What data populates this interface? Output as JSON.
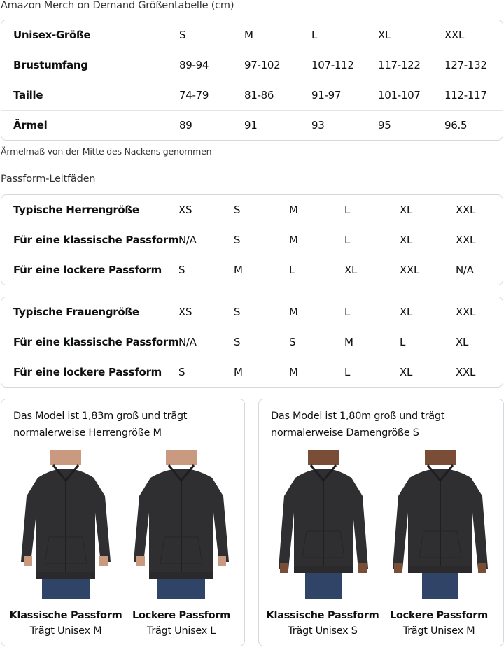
{
  "title": "Amazon Merch on Demand Größentabelle (cm)",
  "size_table": {
    "rows": [
      [
        "Unisex-Größe",
        "S",
        "M",
        "L",
        "XL",
        "XXL"
      ],
      [
        "Brustumfang",
        "89-94",
        "97-102",
        "107-112",
        "117-122",
        "127-132"
      ],
      [
        "Taille",
        "74-79",
        "81-86",
        "91-97",
        "101-107",
        "112-117"
      ],
      [
        "Ärmel",
        "89",
        "91",
        "93",
        "95",
        "96.5"
      ]
    ]
  },
  "note": "Ärmelmaß von der Mitte des Nackens genommen",
  "fit_title": "Passform-Leitfäden",
  "men_table": {
    "rows": [
      [
        "Typische Herrengröße",
        "XS",
        "S",
        "M",
        "L",
        "XL",
        "XXL"
      ],
      [
        "Für eine klassische Passform",
        "N/A",
        "S",
        "M",
        "L",
        "XL",
        "XXL"
      ],
      [
        "Für eine lockere Passform",
        "S",
        "M",
        "L",
        "XL",
        "XXL",
        "N/A"
      ]
    ]
  },
  "women_table": {
    "rows": [
      [
        "Typische Frauengröße",
        "XS",
        "S",
        "M",
        "L",
        "XL",
        "XXL"
      ],
      [
        "Für eine klassische Passform",
        "N/A",
        "S",
        "S",
        "M",
        "L",
        "XL"
      ],
      [
        "Für eine lockere Passform",
        "S",
        "M",
        "M",
        "L",
        "XL",
        "XXL"
      ]
    ]
  },
  "cards": [
    {
      "line1": "Das Model ist 1,83m groß und trägt",
      "line2": "normalerweise Herrengröße M",
      "figures": [
        {
          "fit": "Klassische Passform",
          "wears": "Trägt Unisex M"
        },
        {
          "fit": "Lockere Passform",
          "wears": "Trägt Unisex L"
        }
      ]
    },
    {
      "line1": "Das Model ist 1,80m groß und trägt",
      "line2": "normalerweise Damengröße S",
      "figures": [
        {
          "fit": "Klassische Passform",
          "wears": "Trägt Unisex S"
        },
        {
          "fit": "Lockere Passform",
          "wears": "Trägt Unisex M"
        }
      ]
    }
  ],
  "colors": {
    "hoodie": "#2f2f31",
    "jeans": "#2f4466",
    "skin_men": "#c99a80",
    "skin_women": "#7a4e36",
    "border": "#d5d9d9"
  }
}
